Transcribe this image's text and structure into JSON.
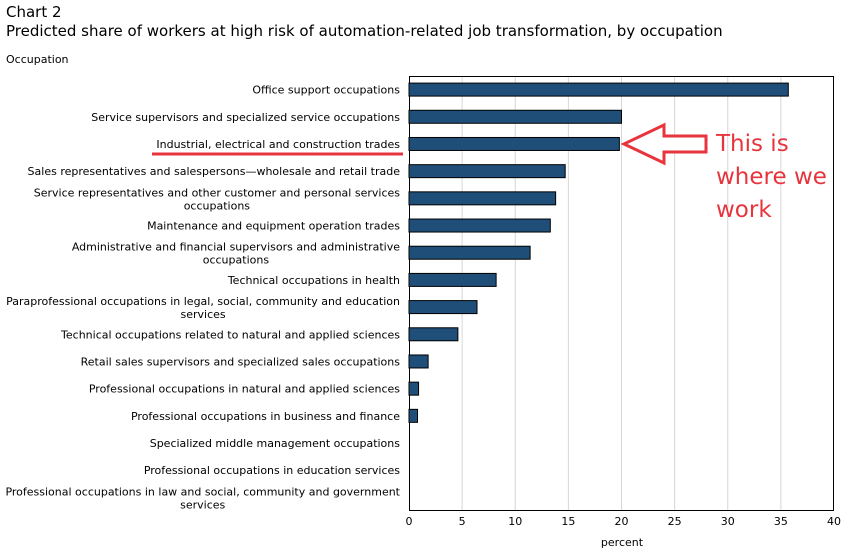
{
  "chart_data": {
    "type": "bar",
    "orientation": "horizontal",
    "label": "Chart 2",
    "title": "Predicted share of workers at high risk of automation-related job transformation, by occupation",
    "ylabel": "Occupation",
    "xlabel": "percent",
    "xlim": [
      0,
      40
    ],
    "xticks": [
      0,
      5,
      10,
      15,
      20,
      25,
      30,
      35,
      40
    ],
    "grid": true,
    "bar_color": "#1f4e79",
    "categories": [
      "Office support occupations",
      "Service supervisors and specialized service occupations",
      "Industrial, electrical and construction trades",
      "Sales representatives and salespersons—wholesale and retail trade",
      "Service representatives and other customer and personal services occupations",
      "Maintenance and equipment operation trades",
      "Administrative and financial supervisors and administrative occupations",
      "Technical occupations in health",
      "Paraprofessional occupations in legal, social, community and education services",
      "Technical occupations related to natural and applied sciences",
      "Retail sales supervisors and specialized sales occupations",
      "Professional occupations in natural and applied sciences",
      "Professional occupations in business and finance",
      "Specialized middle management occupations",
      "Professional occupations in education services",
      "Professional occupations in law and social, community and government services"
    ],
    "values": [
      35.7,
      20.0,
      19.8,
      14.7,
      13.8,
      13.3,
      11.4,
      8.2,
      6.4,
      4.6,
      1.8,
      0.9,
      0.8,
      0,
      0,
      0
    ]
  },
  "annotation": {
    "lines": [
      "This is",
      "where we",
      "work"
    ],
    "color": "#e8343c",
    "highlighted_category_index": 2
  }
}
